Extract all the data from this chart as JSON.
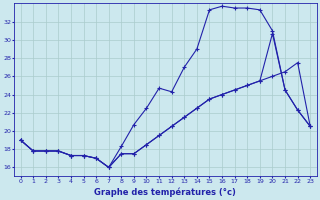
{
  "xlabel": "Graphe des températures (°c)",
  "background_color": "#cce8ee",
  "line_color": "#2222aa",
  "grid_color": "#aacccc",
  "xlim": [
    -0.5,
    23.5
  ],
  "ylim": [
    15.0,
    34.0
  ],
  "yticks": [
    16,
    18,
    20,
    22,
    24,
    26,
    28,
    30,
    32
  ],
  "xticks": [
    0,
    1,
    2,
    3,
    4,
    5,
    6,
    7,
    8,
    9,
    10,
    11,
    12,
    13,
    14,
    15,
    16,
    17,
    18,
    19,
    20,
    21,
    22,
    23
  ],
  "series1": [
    19.0,
    17.8,
    17.8,
    17.8,
    17.3,
    17.3,
    17.0,
    16.0,
    18.3,
    20.7,
    22.5,
    24.7,
    24.3,
    27.0,
    29.0,
    33.3,
    33.7,
    33.5,
    33.5,
    33.3,
    31.0,
    24.5,
    22.3,
    20.5
  ],
  "series2": [
    19.0,
    17.8,
    17.8,
    17.8,
    17.3,
    17.3,
    17.0,
    16.0,
    17.5,
    17.5,
    18.5,
    19.5,
    20.5,
    21.5,
    22.5,
    23.5,
    24.0,
    24.5,
    25.0,
    25.5,
    26.0,
    26.5,
    27.5,
    20.5
  ],
  "series3": [
    19.0,
    17.8,
    17.8,
    17.8,
    17.3,
    17.3,
    17.0,
    16.0,
    17.5,
    17.5,
    18.5,
    19.5,
    20.5,
    21.5,
    22.5,
    23.5,
    24.0,
    24.5,
    25.0,
    25.5,
    30.7,
    24.5,
    22.3,
    20.5
  ]
}
